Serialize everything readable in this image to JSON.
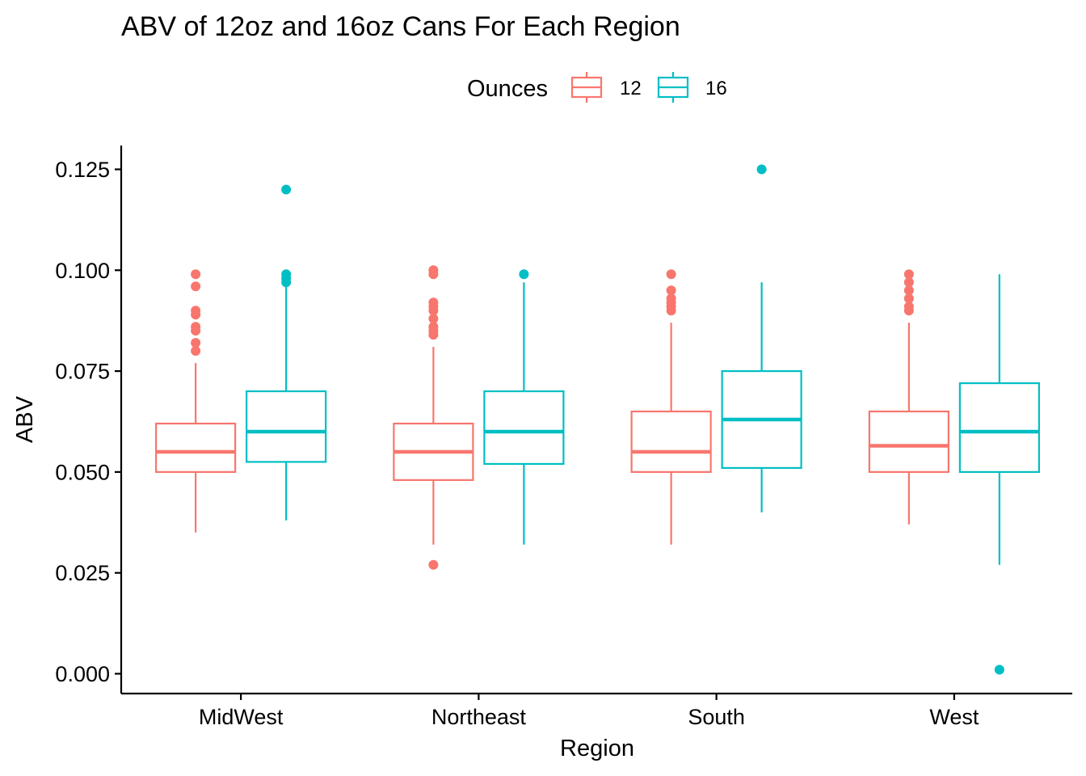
{
  "chart_data": {
    "type": "boxplot",
    "title": "ABV of 12oz and 16oz Cans For Each Region",
    "xlabel": "Region",
    "ylabel": "ABV",
    "ylim": [
      -0.005,
      0.1305
    ],
    "yticks": [
      0.0,
      0.025,
      0.05,
      0.075,
      0.1,
      0.125
    ],
    "ytick_labels": [
      "0.000",
      "0.025",
      "0.050",
      "0.075",
      "0.100",
      "0.125"
    ],
    "categories": [
      "MidWest",
      "Northeast",
      "South",
      "West"
    ],
    "legend": {
      "title": "Ounces",
      "position": "top"
    },
    "grid": false,
    "series": [
      {
        "name": "12",
        "color": "#F8766D",
        "boxes": [
          {
            "min": 0.035,
            "q1": 0.05,
            "median": 0.055,
            "q3": 0.062,
            "max": 0.077,
            "outliers": [
              0.08,
              0.082,
              0.085,
              0.086,
              0.089,
              0.09,
              0.096,
              0.099
            ]
          },
          {
            "min": 0.032,
            "q1": 0.048,
            "median": 0.055,
            "q3": 0.062,
            "max": 0.081,
            "outliers": [
              0.027,
              0.084,
              0.085,
              0.086,
              0.088,
              0.09,
              0.091,
              0.092,
              0.099,
              0.1
            ]
          },
          {
            "min": 0.032,
            "q1": 0.05,
            "median": 0.055,
            "q3": 0.065,
            "max": 0.087,
            "outliers": [
              0.09,
              0.091,
              0.092,
              0.093,
              0.095,
              0.099
            ]
          },
          {
            "min": 0.037,
            "q1": 0.05,
            "median": 0.0565,
            "q3": 0.065,
            "max": 0.087,
            "outliers": [
              0.09,
              0.091,
              0.093,
              0.095,
              0.097,
              0.099
            ]
          }
        ]
      },
      {
        "name": "16",
        "color": "#00BFC4",
        "boxes": [
          {
            "min": 0.038,
            "q1": 0.0525,
            "median": 0.06,
            "q3": 0.07,
            "max": 0.097,
            "outliers": [
              0.097,
              0.098,
              0.099,
              0.12
            ]
          },
          {
            "min": 0.032,
            "q1": 0.052,
            "median": 0.06,
            "q3": 0.07,
            "max": 0.097,
            "outliers": [
              0.099
            ]
          },
          {
            "min": 0.04,
            "q1": 0.051,
            "median": 0.063,
            "q3": 0.075,
            "max": 0.097,
            "outliers": [
              0.125
            ]
          },
          {
            "min": 0.027,
            "q1": 0.05,
            "median": 0.06,
            "q3": 0.072,
            "max": 0.099,
            "outliers": [
              0.001
            ]
          }
        ]
      }
    ]
  }
}
